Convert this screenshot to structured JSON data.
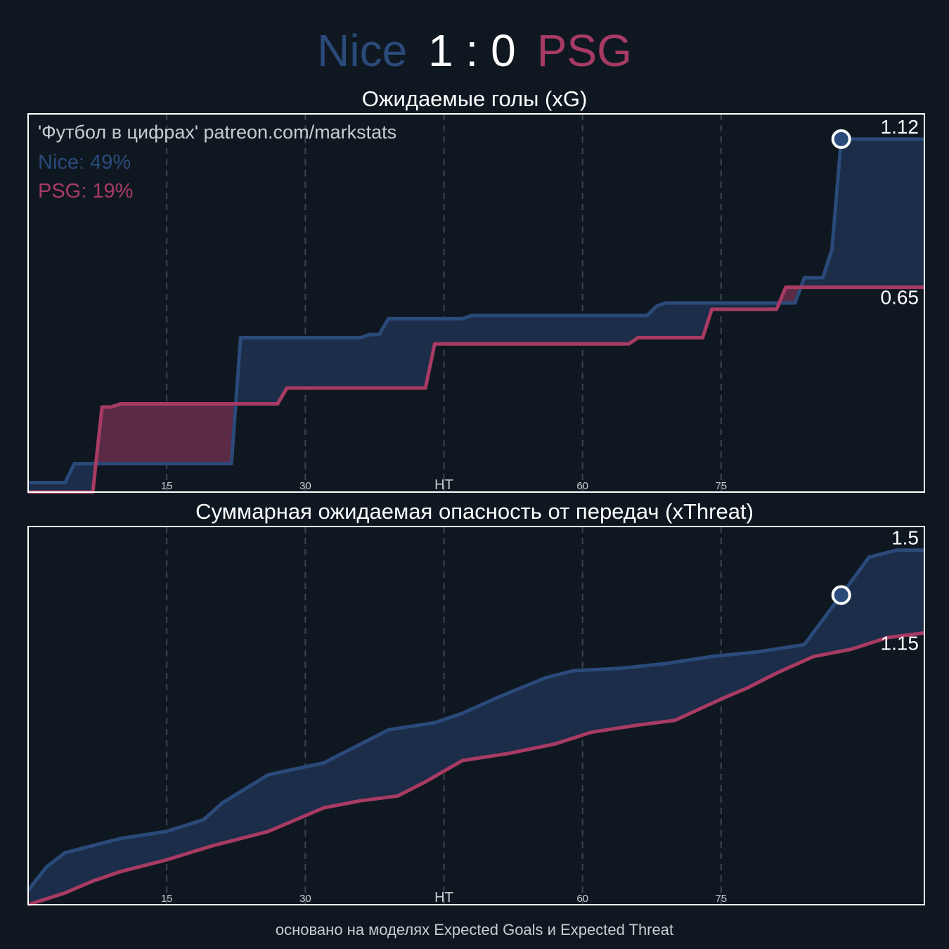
{
  "header": {
    "home_team": "Nice",
    "score": "1 : 0",
    "away_team": "PSG"
  },
  "colors": {
    "background": "#0f1821",
    "home": "#2a4a7a",
    "home_fill": "#1b2d48",
    "away": "#a83b63",
    "away_fill": "#5b2a44",
    "text": "#ffffff",
    "grid": "#3a4550",
    "note": "#c8ccd0"
  },
  "annotation": {
    "credit": "'Футбол в цифрах' patreon.com/markstats",
    "home_share": "Nice: 49%",
    "away_share": "PSG: 19%"
  },
  "footer": "основано на моделях Expected Goals и Expected Threat",
  "chart_data": [
    {
      "type": "line",
      "title": "Ожидаемые голы (xG)",
      "xlim": [
        0,
        97
      ],
      "ylim": [
        0,
        1.2
      ],
      "x_ticks": [
        15,
        30,
        45,
        60,
        75
      ],
      "x_tick_labels": [
        "15",
        "30",
        "HT",
        "60",
        "75"
      ],
      "grid": "vertical dashed",
      "step": true,
      "end_labels": [
        "1.12",
        "0.65"
      ],
      "goal_marker": {
        "team": "Nice",
        "minute": 88,
        "value": 1.12
      },
      "series": [
        {
          "name": "Nice",
          "points": [
            [
              0,
              0.03
            ],
            [
              4,
              0.03
            ],
            [
              5,
              0.09
            ],
            [
              22,
              0.09
            ],
            [
              23,
              0.49
            ],
            [
              36,
              0.49
            ],
            [
              37,
              0.5
            ],
            [
              38,
              0.5
            ],
            [
              39,
              0.55
            ],
            [
              47,
              0.55
            ],
            [
              48,
              0.56
            ],
            [
              67,
              0.56
            ],
            [
              68,
              0.59
            ],
            [
              69,
              0.6
            ],
            [
              83,
              0.6
            ],
            [
              84,
              0.68
            ],
            [
              86,
              0.68
            ],
            [
              87,
              0.77
            ],
            [
              88,
              1.12
            ],
            [
              97,
              1.12
            ]
          ]
        },
        {
          "name": "PSG",
          "points": [
            [
              0,
              0
            ],
            [
              7,
              0
            ],
            [
              8,
              0.27
            ],
            [
              9,
              0.27
            ],
            [
              10,
              0.28
            ],
            [
              27,
              0.28
            ],
            [
              28,
              0.33
            ],
            [
              43,
              0.33
            ],
            [
              44,
              0.47
            ],
            [
              65,
              0.47
            ],
            [
              66,
              0.49
            ],
            [
              73,
              0.49
            ],
            [
              74,
              0.58
            ],
            [
              81,
              0.58
            ],
            [
              82,
              0.65
            ],
            [
              97,
              0.65
            ]
          ]
        }
      ]
    },
    {
      "type": "line",
      "title": "Суммарная ожидаемая опасность от передач (xThreat)",
      "xlim": [
        0,
        97
      ],
      "ylim": [
        0,
        1.6
      ],
      "x_ticks": [
        15,
        30,
        45,
        60,
        75
      ],
      "x_tick_labels": [
        "15",
        "30",
        "HT",
        "60",
        "75"
      ],
      "grid": "vertical dashed",
      "step": false,
      "end_labels": [
        "1.5",
        "1.15"
      ],
      "goal_marker": {
        "team": "Nice",
        "minute": 88,
        "value": 1.31
      },
      "series": [
        {
          "name": "Nice",
          "points": [
            [
              0,
              0.06
            ],
            [
              2,
              0.16
            ],
            [
              4,
              0.22
            ],
            [
              7,
              0.25
            ],
            [
              10,
              0.28
            ],
            [
              15,
              0.31
            ],
            [
              19,
              0.36
            ],
            [
              21,
              0.43
            ],
            [
              26,
              0.55
            ],
            [
              32,
              0.6
            ],
            [
              35,
              0.66
            ],
            [
              39,
              0.74
            ],
            [
              44,
              0.77
            ],
            [
              47,
              0.81
            ],
            [
              51,
              0.88
            ],
            [
              56,
              0.96
            ],
            [
              59,
              0.99
            ],
            [
              64,
              1.0
            ],
            [
              69,
              1.02
            ],
            [
              74,
              1.05
            ],
            [
              79,
              1.07
            ],
            [
              84,
              1.1
            ],
            [
              88,
              1.31
            ],
            [
              91,
              1.47
            ],
            [
              94,
              1.5
            ],
            [
              97,
              1.5
            ]
          ]
        },
        {
          "name": "PSG",
          "points": [
            [
              0,
              0
            ],
            [
              4,
              0.05
            ],
            [
              7,
              0.1
            ],
            [
              10,
              0.14
            ],
            [
              15,
              0.19
            ],
            [
              20,
              0.25
            ],
            [
              26,
              0.31
            ],
            [
              29,
              0.36
            ],
            [
              32,
              0.41
            ],
            [
              36,
              0.44
            ],
            [
              40,
              0.46
            ],
            [
              43,
              0.52
            ],
            [
              47,
              0.61
            ],
            [
              52,
              0.64
            ],
            [
              57,
              0.68
            ],
            [
              61,
              0.73
            ],
            [
              66,
              0.76
            ],
            [
              70,
              0.78
            ],
            [
              75,
              0.87
            ],
            [
              78,
              0.92
            ],
            [
              81,
              0.98
            ],
            [
              85,
              1.05
            ],
            [
              89,
              1.08
            ],
            [
              93,
              1.13
            ],
            [
              97,
              1.15
            ]
          ]
        }
      ]
    }
  ]
}
